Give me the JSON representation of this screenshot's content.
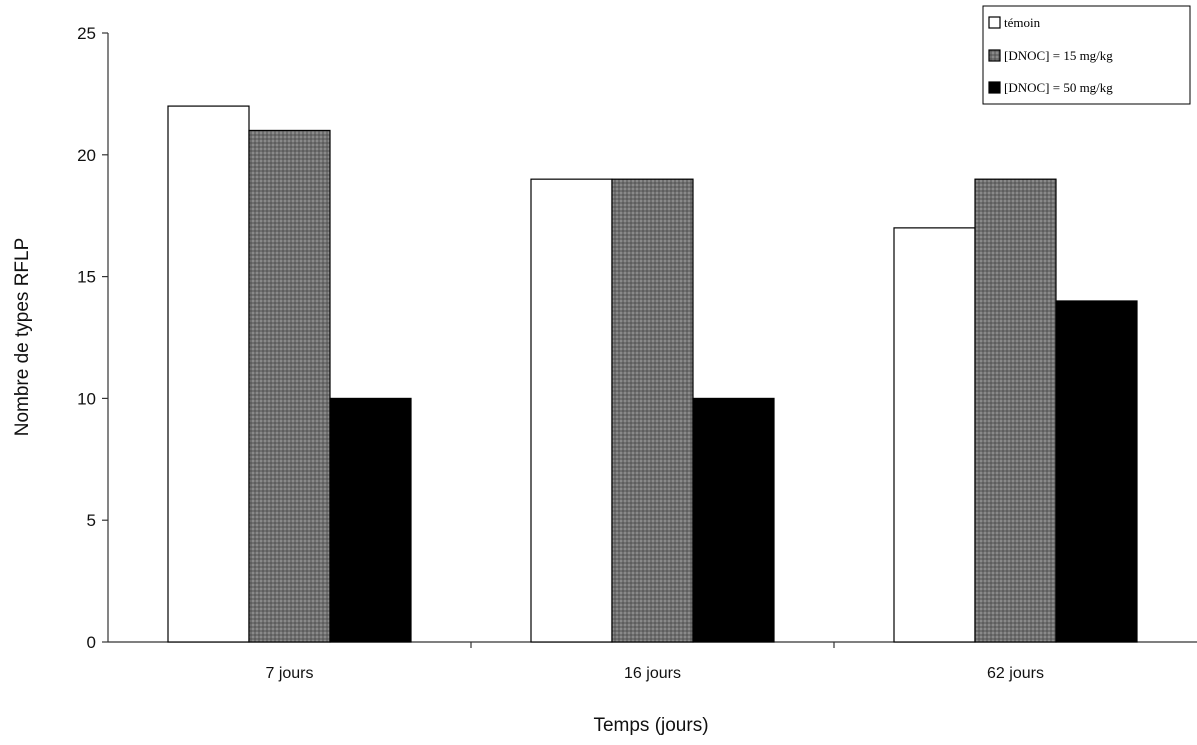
{
  "chart_data": {
    "type": "bar",
    "title": "",
    "xlabel": "Temps (jours)",
    "ylabel": "Nombre de types RFLP",
    "categories": [
      "7 jours",
      "16 jours",
      "62 jours"
    ],
    "ylim": [
      0,
      25
    ],
    "yticks": [
      "0",
      "5",
      "10",
      "15",
      "20",
      "25"
    ],
    "grid": false,
    "legend_position": "top-right",
    "series": [
      {
        "name": "témoin",
        "values": [
          22,
          19,
          17
        ],
        "color": "#ffffff"
      },
      {
        "name": "[DNOC] = 15 mg/kg",
        "values": [
          21,
          19,
          19
        ],
        "color": "#7a7a7a"
      },
      {
        "name": "[DNOC] = 50 mg/kg",
        "values": [
          10,
          10,
          14
        ],
        "color": "#000000"
      }
    ]
  }
}
